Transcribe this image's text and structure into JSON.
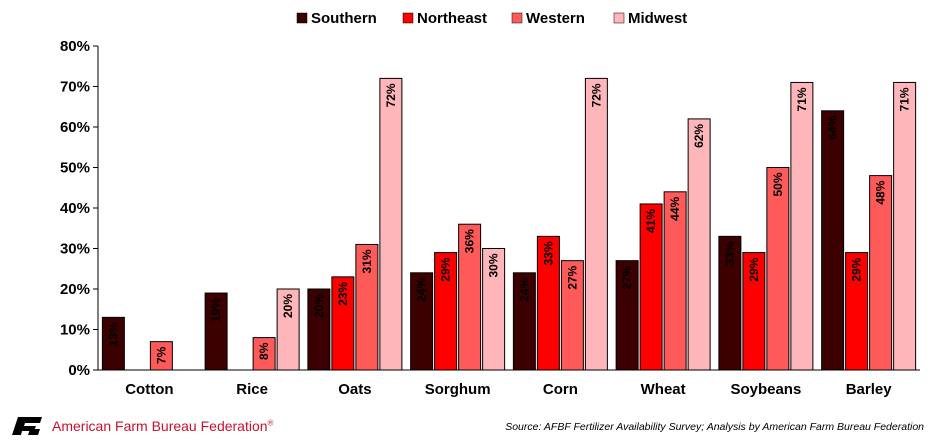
{
  "chart_data": {
    "type": "bar",
    "title": "",
    "xlabel": "",
    "ylabel": "",
    "ylim": [
      0,
      80
    ],
    "yticks": [
      "0%",
      "10%",
      "20%",
      "30%",
      "40%",
      "50%",
      "60%",
      "70%",
      "80%"
    ],
    "ytick_values": [
      0,
      10,
      20,
      30,
      40,
      50,
      60,
      70,
      80
    ],
    "categories": [
      "Cotton",
      "Rice",
      "Oats",
      "Sorghum",
      "Corn",
      "Wheat",
      "Soybeans",
      "Barley"
    ],
    "legend_position": "top",
    "series": [
      {
        "name": "Southern",
        "color": "#3d0000",
        "values": [
          13,
          19,
          20,
          24,
          24,
          27,
          33,
          64
        ],
        "labels": [
          "13%",
          "19%",
          "20%",
          "24%",
          "24%",
          "27%",
          "33%",
          "64%"
        ]
      },
      {
        "name": "Northeast",
        "color": "#ff0000",
        "values": [
          null,
          null,
          23,
          29,
          33,
          41,
          29,
          29
        ],
        "labels": [
          "",
          "",
          "23%",
          "29%",
          "33%",
          "41%",
          "29%",
          "29%"
        ]
      },
      {
        "name": "Western",
        "color": "#ff5a5a",
        "values": [
          7,
          8,
          31,
          36,
          27,
          44,
          50,
          48
        ],
        "labels": [
          "7%",
          "8%",
          "31%",
          "36%",
          "27%",
          "44%",
          "50%",
          "48%"
        ]
      },
      {
        "name": "Midwest",
        "color": "#ffb6bb",
        "values": [
          null,
          20,
          72,
          30,
          72,
          62,
          71,
          71
        ],
        "labels": [
          "",
          "20%",
          "72%",
          "30%",
          "72%",
          "62%",
          "71%",
          "71%"
        ]
      }
    ]
  },
  "footer": {
    "logo_icon": "fb-logo-icon",
    "organization": "American Farm Bureau Federation",
    "trademark": "®",
    "brand_color": "#c8102e",
    "source": "Source: AFBF Fertilizer Availability Survey; Analysis by American Farm Bureau Federation"
  }
}
